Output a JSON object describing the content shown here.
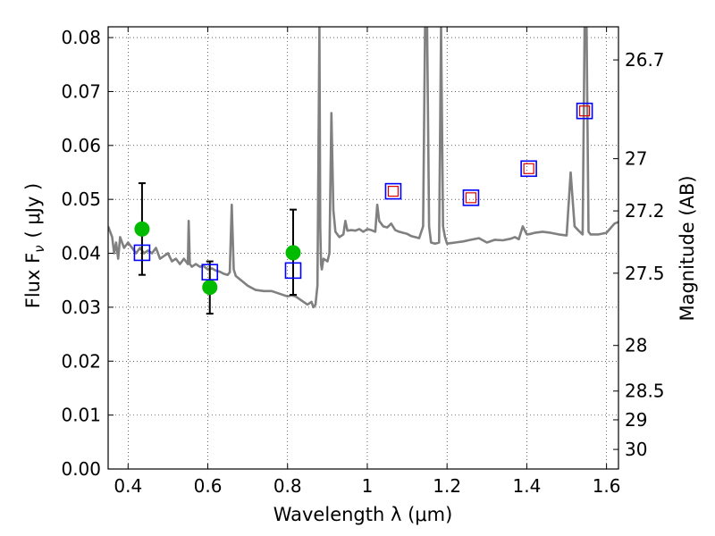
{
  "chart_data": {
    "type": "scatter",
    "xlabel": "Wavelength  λ (μm)",
    "ylabel_left": "Flux  F",
    "ylabel_left_sub": "ν",
    "ylabel_left_unit": "( μJy )",
    "ylabel_right": "Magnitude (AB)",
    "xlim": [
      0.35,
      1.63
    ],
    "ylim": [
      0.0,
      0.082
    ],
    "grid": true,
    "x_ticks": [
      {
        "value": 0.4,
        "label": "0.4"
      },
      {
        "value": 0.6,
        "label": "0.6"
      },
      {
        "value": 0.8,
        "label": "0.8"
      },
      {
        "value": 1.0,
        "label": "1"
      },
      {
        "value": 1.2,
        "label": "1.2"
      },
      {
        "value": 1.4,
        "label": "1.4"
      },
      {
        "value": 1.6,
        "label": "1.6"
      }
    ],
    "y_ticks": [
      {
        "value": 0.0,
        "label": "0.00"
      },
      {
        "value": 0.01,
        "label": "0.01"
      },
      {
        "value": 0.02,
        "label": "0.02"
      },
      {
        "value": 0.03,
        "label": "0.03"
      },
      {
        "value": 0.04,
        "label": "0.04"
      },
      {
        "value": 0.05,
        "label": "0.05"
      },
      {
        "value": 0.06,
        "label": "0.06"
      },
      {
        "value": 0.07,
        "label": "0.07"
      },
      {
        "value": 0.08,
        "label": "0.08"
      }
    ],
    "right_ticks": [
      {
        "magnitude": 26.7,
        "label": "26.7"
      },
      {
        "magnitude": 27.0,
        "label": "27"
      },
      {
        "magnitude": 27.2,
        "label": "27.2"
      },
      {
        "magnitude": 27.5,
        "label": "27.5"
      },
      {
        "magnitude": 28.0,
        "label": "28"
      },
      {
        "magnitude": 28.5,
        "label": "28.5"
      },
      {
        "magnitude": 29.0,
        "label": "29"
      },
      {
        "magnitude": 30.0,
        "label": "30"
      }
    ],
    "colors": {
      "spectrum": "#808080",
      "observed": "#00bb00",
      "model_box": "#0000ff",
      "model_inner": "#dd0000",
      "errorbar": "#000000"
    },
    "series": [
      {
        "kind": "spectrum",
        "x": [
          0.35,
          0.36,
          0.365,
          0.37,
          0.375,
          0.38,
          0.39,
          0.4,
          0.41,
          0.42,
          0.43,
          0.44,
          0.45,
          0.46,
          0.47,
          0.48,
          0.49,
          0.5,
          0.51,
          0.52,
          0.53,
          0.54,
          0.55,
          0.552,
          0.555,
          0.56,
          0.57,
          0.58,
          0.59,
          0.6,
          0.61,
          0.62,
          0.63,
          0.64,
          0.65,
          0.655,
          0.66,
          0.665,
          0.67,
          0.68,
          0.7,
          0.72,
          0.74,
          0.76,
          0.78,
          0.8,
          0.81,
          0.82,
          0.83,
          0.84,
          0.85,
          0.86,
          0.865,
          0.87,
          0.875,
          0.88,
          0.882,
          0.884,
          0.886,
          0.89,
          0.9,
          0.905,
          0.91,
          0.915,
          0.92,
          0.93,
          0.94,
          0.945,
          0.95,
          0.96,
          0.97,
          0.98,
          0.99,
          1.0,
          1.01,
          1.02,
          1.025,
          1.03,
          1.04,
          1.05,
          1.06,
          1.07,
          1.08,
          1.09,
          1.1,
          1.11,
          1.12,
          1.13,
          1.14,
          1.145,
          1.15,
          1.155,
          1.16,
          1.17,
          1.18,
          1.185,
          1.19,
          1.195,
          1.2,
          1.22,
          1.24,
          1.26,
          1.28,
          1.3,
          1.32,
          1.34,
          1.36,
          1.37,
          1.38,
          1.39,
          1.4,
          1.41,
          1.42,
          1.44,
          1.46,
          1.48,
          1.5,
          1.51,
          1.52,
          1.53,
          1.54,
          1.545,
          1.55,
          1.555,
          1.56,
          1.58,
          1.6,
          1.62,
          1.63
        ],
        "y": [
          0.045,
          0.043,
          0.04,
          0.042,
          0.039,
          0.043,
          0.041,
          0.042,
          0.041,
          0.04,
          0.041,
          0.04,
          0.0405,
          0.04,
          0.041,
          0.039,
          0.0395,
          0.04,
          0.0385,
          0.039,
          0.038,
          0.039,
          0.038,
          0.046,
          0.038,
          0.0375,
          0.038,
          0.0375,
          0.0376,
          0.037,
          0.0372,
          0.0368,
          0.0366,
          0.0362,
          0.036,
          0.0365,
          0.049,
          0.037,
          0.0358,
          0.0352,
          0.034,
          0.0332,
          0.033,
          0.033,
          0.0325,
          0.032,
          0.0322,
          0.032,
          0.0315,
          0.031,
          0.0305,
          0.031,
          0.03,
          0.0305,
          0.034,
          0.082,
          0.045,
          0.038,
          0.037,
          0.039,
          0.0385,
          0.04,
          0.066,
          0.048,
          0.044,
          0.043,
          0.0435,
          0.046,
          0.0442,
          0.0443,
          0.0442,
          0.0445,
          0.044,
          0.0445,
          0.0443,
          0.044,
          0.049,
          0.046,
          0.045,
          0.0448,
          0.0455,
          0.0443,
          0.044,
          0.0438,
          0.0436,
          0.0432,
          0.043,
          0.0428,
          0.045,
          0.082,
          0.082,
          0.045,
          0.042,
          0.0418,
          0.042,
          0.082,
          0.045,
          0.043,
          0.0418,
          0.042,
          0.0422,
          0.0425,
          0.0428,
          0.042,
          0.0425,
          0.0424,
          0.0427,
          0.043,
          0.0426,
          0.045,
          0.0435,
          0.0436,
          0.0438,
          0.044,
          0.0438,
          0.0435,
          0.0433,
          0.055,
          0.045,
          0.0442,
          0.0435,
          0.082,
          0.082,
          0.044,
          0.0435,
          0.0435,
          0.0438,
          0.0455,
          0.0458
        ]
      },
      {
        "kind": "observed",
        "points": [
          {
            "x": 0.435,
            "y": 0.0445,
            "yerr_low": 0.036,
            "yerr_high": 0.053
          },
          {
            "x": 0.605,
            "y": 0.0337,
            "yerr_low": 0.0288,
            "yerr_high": 0.0385
          },
          {
            "x": 0.814,
            "y": 0.0401,
            "yerr_low": 0.0323,
            "yerr_high": 0.0481
          }
        ]
      },
      {
        "kind": "model",
        "points": [
          {
            "x": 0.435,
            "y": 0.0401,
            "inner": false
          },
          {
            "x": 0.605,
            "y": 0.0365,
            "inner": false
          },
          {
            "x": 0.814,
            "y": 0.0368,
            "inner": false
          },
          {
            "x": 1.065,
            "y": 0.0515,
            "inner": true
          },
          {
            "x": 1.26,
            "y": 0.0503,
            "inner": true
          },
          {
            "x": 1.405,
            "y": 0.0557,
            "inner": true
          },
          {
            "x": 1.545,
            "y": 0.0664,
            "inner": true
          }
        ]
      }
    ]
  }
}
